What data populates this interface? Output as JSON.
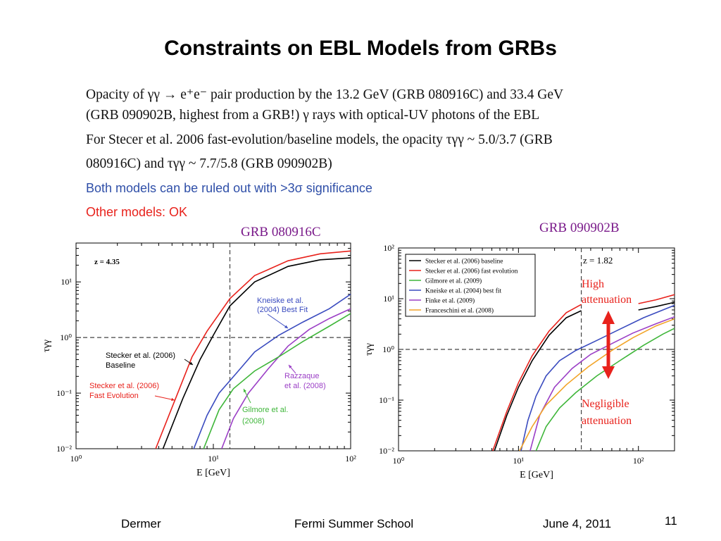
{
  "slide": {
    "title": "Constraints on EBL Models from GRBs",
    "lines": [
      "Opacity of  γγ → e⁺e⁻ pair production by the 13.2 GeV (GRB 080916C) and 33.4 GeV",
      "(GRB 090902B, highest from a GRB!) γ rays with optical-UV photons of the EBL",
      "For Stecer et al. 2006 fast-evolution/baseline models, the opacity τγγ ~ 5.0/3.7 (GRB",
      "080916C) and τγγ ~ 7.7/5.8 (GRB 090902B)"
    ],
    "blue_line": "Both models can be ruled out with >3σ significance",
    "red_line": "Other models: OK",
    "footer": {
      "author": "Dermer",
      "event": "Fermi Summer School",
      "date": "June 4, 2011",
      "page": "11"
    }
  },
  "colors": {
    "red": "#e8221c",
    "blue": "#3a4bbf",
    "green": "#3fb63a",
    "purple": "#9b3fc6",
    "orange": "#f2a428",
    "black": "#000000",
    "title_purple": "#7a1a8a",
    "text_blue": "#2f4fa8"
  },
  "chart_data": [
    {
      "type": "line",
      "title": "GRB 080916C",
      "xlabel": "E [GeV]",
      "ylabel": "τγγ",
      "xscale": "log",
      "yscale": "log",
      "xlim": [
        1,
        100
      ],
      "ylim": [
        0.01,
        50
      ],
      "x_ticks": [
        "10⁰",
        "10¹",
        "10²"
      ],
      "y_ticks": [
        "10⁻²",
        "10⁻¹",
        "10⁰",
        "10¹"
      ],
      "redshift_label": "z = 4.35",
      "vline_x": 13.2,
      "hline_y": 1,
      "series": [
        {
          "key": "stecker_base",
          "color_key": "black",
          "points": [
            [
              4.3,
              0.01
            ],
            [
              6,
              0.08
            ],
            [
              8,
              0.4
            ],
            [
              10,
              1.1
            ],
            [
              13.2,
              3.7
            ],
            [
              20,
              10
            ],
            [
              35,
              19
            ],
            [
              60,
              25
            ],
            [
              100,
              27
            ]
          ]
        },
        {
          "key": "stecker_fast",
          "color_key": "red",
          "points": [
            [
              3.8,
              0.01
            ],
            [
              5.5,
              0.1
            ],
            [
              7,
              0.45
            ],
            [
              9,
              1.3
            ],
            [
              13.2,
              5
            ],
            [
              20,
              13
            ],
            [
              35,
              24
            ],
            [
              60,
              32
            ],
            [
              100,
              36
            ]
          ]
        },
        {
          "key": "kneiske",
          "color_key": "blue",
          "points": [
            [
              7.2,
              0.01
            ],
            [
              9,
              0.04
            ],
            [
              11,
              0.1
            ],
            [
              15,
              0.24
            ],
            [
              20,
              0.55
            ],
            [
              30,
              1.1
            ],
            [
              45,
              1.9
            ],
            [
              70,
              3.3
            ],
            [
              100,
              6
            ]
          ]
        },
        {
          "key": "razzaque",
          "color_key": "purple",
          "points": [
            [
              11.5,
              0.01
            ],
            [
              14,
              0.035
            ],
            [
              18,
              0.1
            ],
            [
              25,
              0.27
            ],
            [
              35,
              0.7
            ],
            [
              50,
              1.4
            ],
            [
              70,
              2.2
            ],
            [
              100,
              3.3
            ]
          ]
        },
        {
          "key": "gilmore",
          "color_key": "green",
          "points": [
            [
              8.5,
              0.01
            ],
            [
              11,
              0.05
            ],
            [
              14,
              0.12
            ],
            [
              20,
              0.25
            ],
            [
              30,
              0.45
            ],
            [
              45,
              0.85
            ],
            [
              70,
              1.6
            ],
            [
              100,
              2.7
            ]
          ]
        }
      ],
      "annotations": [
        {
          "text": "Kneiske et al.",
          "color_key": "blue"
        },
        {
          "text": "(2004) Best Fit",
          "color_key": "blue"
        },
        {
          "text": "Stecker et al. (2006)",
          "color_key": "black"
        },
        {
          "text": "Baseline",
          "color_key": "black"
        },
        {
          "text": "Stecker et al. (2006)",
          "color_key": "red"
        },
        {
          "text": "Fast Evolution",
          "color_key": "red"
        },
        {
          "text": "Razzaque",
          "color_key": "purple"
        },
        {
          "text": "et al. (2008)",
          "color_key": "purple"
        },
        {
          "text": "Gilmore et al.",
          "color_key": "green"
        },
        {
          "text": "(2008)",
          "color_key": "green"
        }
      ]
    },
    {
      "type": "line",
      "title": "GRB 090902B",
      "xlabel": "E [GeV]",
      "ylabel": "τγγ",
      "xscale": "log",
      "yscale": "log",
      "xlim": [
        1,
        200
      ],
      "ylim": [
        0.01,
        100
      ],
      "x_ticks": [
        "10⁰",
        "10¹",
        "10²"
      ],
      "y_ticks": [
        "10⁻²",
        "10⁻¹",
        "10⁰",
        "10¹",
        "10²"
      ],
      "redshift_label": "z = 1.82",
      "vline_x": 33.4,
      "hline_y": 1,
      "legend_position": "top-left",
      "legend": [
        {
          "label": "Stecker et al. (2006) baseline",
          "color_key": "black"
        },
        {
          "label": "Stecker et al. (2006) fast evolution",
          "color_key": "red"
        },
        {
          "label": "Gilmore et al. (2009)",
          "color_key": "green"
        },
        {
          "label": "Kneiske et al. (2004) best fit",
          "color_key": "blue"
        },
        {
          "label": "Finke et al. (2009)",
          "color_key": "purple"
        },
        {
          "label": "Franceschini et al. (2008)",
          "color_key": "orange"
        }
      ],
      "series": [
        {
          "key": "stecker_base",
          "color_key": "black",
          "segments": [
            [
              [
                6.3,
                0.01
              ],
              [
                8,
                0.05
              ],
              [
                10,
                0.18
              ],
              [
                13,
                0.6
              ],
              [
                18,
                1.9
              ],
              [
                25,
                4.2
              ],
              [
                33.4,
                5.8
              ]
            ],
            [
              [
                100,
                6
              ],
              [
                140,
                7
              ],
              [
                200,
                8.5
              ]
            ]
          ]
        },
        {
          "key": "stecker_fast",
          "color_key": "red",
          "segments": [
            [
              [
                6.1,
                0.01
              ],
              [
                8,
                0.06
              ],
              [
                10,
                0.22
              ],
              [
                13,
                0.75
              ],
              [
                18,
                2.3
              ],
              [
                25,
                5.3
              ],
              [
                33.4,
                7.7
              ]
            ],
            [
              [
                100,
                8
              ],
              [
                140,
                9.5
              ],
              [
                200,
                12
              ]
            ]
          ]
        },
        {
          "key": "kneiske",
          "color_key": "blue",
          "segments": [
            [
              [
                10.5,
                0.01
              ],
              [
                12,
                0.04
              ],
              [
                14,
                0.12
              ],
              [
                17,
                0.3
              ],
              [
                22,
                0.6
              ],
              [
                30,
                0.95
              ],
              [
                45,
                1.5
              ],
              [
                70,
                2.5
              ],
              [
                110,
                4.2
              ],
              [
                160,
                6
              ],
              [
                200,
                7.4
              ]
            ]
          ]
        },
        {
          "key": "finke",
          "color_key": "purple",
          "segments": [
            [
              [
                12.5,
                0.01
              ],
              [
                15,
                0.05
              ],
              [
                20,
                0.18
              ],
              [
                28,
                0.42
              ],
              [
                40,
                0.8
              ],
              [
                60,
                1.3
              ],
              [
                90,
                2.1
              ],
              [
                140,
                3.2
              ],
              [
                200,
                4.4
              ]
            ]
          ]
        },
        {
          "key": "gilmore",
          "color_key": "green",
          "segments": [
            [
              [
                14,
                0.01
              ],
              [
                17,
                0.03
              ],
              [
                22,
                0.07
              ],
              [
                30,
                0.14
              ],
              [
                45,
                0.3
              ],
              [
                70,
                0.6
              ],
              [
                110,
                1.2
              ],
              [
                160,
                2
              ],
              [
                200,
                2.6
              ]
            ]
          ]
        },
        {
          "key": "franceschini",
          "color_key": "orange",
          "segments": [
            [
              [
                10.2,
                0.01
              ],
              [
                13,
                0.03
              ],
              [
                17,
                0.08
              ],
              [
                25,
                0.2
              ],
              [
                38,
                0.45
              ],
              [
                60,
                0.95
              ],
              [
                90,
                1.7
              ],
              [
                140,
                2.9
              ],
              [
                200,
                4
              ]
            ]
          ]
        }
      ],
      "annotations": [
        {
          "text": "High",
          "color_key": "red"
        },
        {
          "text": "attenuation",
          "color_key": "red"
        },
        {
          "text": "Negligible",
          "color_key": "red"
        },
        {
          "text": "attenuation",
          "color_key": "red"
        }
      ]
    }
  ]
}
